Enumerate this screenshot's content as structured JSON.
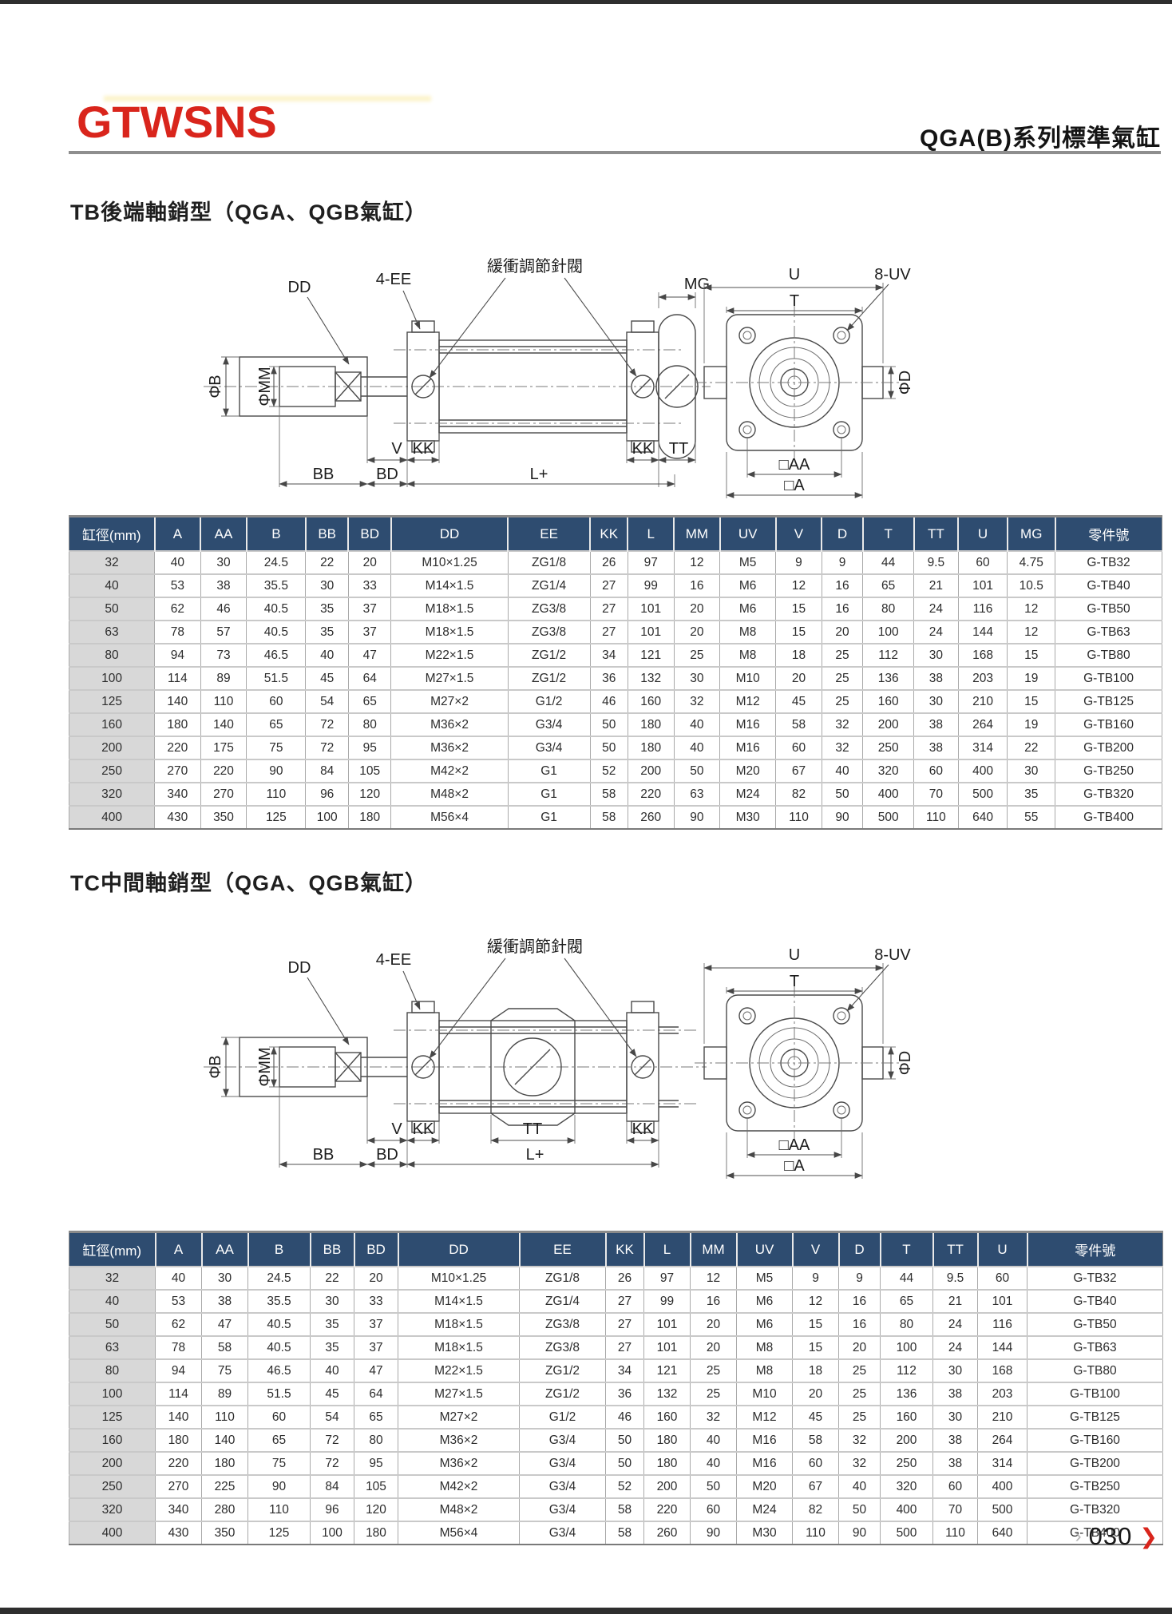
{
  "page": {
    "brand_logo": "GTWSNS",
    "doc_title": "QGA(B)系列標準氣缸",
    "pager": {
      "prev_icon": "›",
      "page_number": "030",
      "next_icon": "❯"
    }
  },
  "colors": {
    "accent_red": "#d9251c",
    "table_header_navy": "#2e4c70"
  },
  "sections": [
    {
      "title": "TB後端軸銷型（QGA、QGB氣缸）",
      "diagram": {
        "labels": {
          "dd": "DD",
          "ee": "4-EE",
          "valve": "緩衝調節針閥",
          "mg": "MG",
          "phi_b": "ΦB",
          "phi_mm": "ΦMM",
          "v": "V",
          "kk": "KK",
          "tt": "TT",
          "bb": "BB",
          "bd": "BD",
          "lplus": "L+",
          "u": "U",
          "t": "T",
          "uv": "8-UV",
          "phi_d": "ΦD",
          "aa": "□AA",
          "a": "□A"
        }
      },
      "table": {
        "headers": [
          "缸徑(mm)",
          "A",
          "AA",
          "B",
          "BB",
          "BD",
          "DD",
          "EE",
          "KK",
          "L",
          "MM",
          "UV",
          "V",
          "D",
          "T",
          "TT",
          "U",
          "MG",
          "零件號"
        ],
        "rows": [
          [
            "32",
            "40",
            "30",
            "24.5",
            "22",
            "20",
            "M10×1.25",
            "ZG1/8",
            "26",
            "97",
            "12",
            "M5",
            "9",
            "9",
            "44",
            "9.5",
            "60",
            "4.75",
            "G-TB32"
          ],
          [
            "40",
            "53",
            "38",
            "35.5",
            "30",
            "33",
            "M14×1.5",
            "ZG1/4",
            "27",
            "99",
            "16",
            "M6",
            "12",
            "16",
            "65",
            "21",
            "101",
            "10.5",
            "G-TB40"
          ],
          [
            "50",
            "62",
            "46",
            "40.5",
            "35",
            "37",
            "M18×1.5",
            "ZG3/8",
            "27",
            "101",
            "20",
            "M6",
            "15",
            "16",
            "80",
            "24",
            "116",
            "12",
            "G-TB50"
          ],
          [
            "63",
            "78",
            "57",
            "40.5",
            "35",
            "37",
            "M18×1.5",
            "ZG3/8",
            "27",
            "101",
            "20",
            "M8",
            "15",
            "20",
            "100",
            "24",
            "144",
            "12",
            "G-TB63"
          ],
          [
            "80",
            "94",
            "73",
            "46.5",
            "40",
            "47",
            "M22×1.5",
            "ZG1/2",
            "34",
            "121",
            "25",
            "M8",
            "18",
            "25",
            "112",
            "30",
            "168",
            "15",
            "G-TB80"
          ],
          [
            "100",
            "114",
            "89",
            "51.5",
            "45",
            "64",
            "M27×1.5",
            "ZG1/2",
            "36",
            "132",
            "30",
            "M10",
            "20",
            "25",
            "136",
            "38",
            "203",
            "19",
            "G-TB100"
          ],
          [
            "125",
            "140",
            "110",
            "60",
            "54",
            "65",
            "M27×2",
            "G1/2",
            "46",
            "160",
            "32",
            "M12",
            "45",
            "25",
            "160",
            "30",
            "210",
            "15",
            "G-TB125"
          ],
          [
            "160",
            "180",
            "140",
            "65",
            "72",
            "80",
            "M36×2",
            "G3/4",
            "50",
            "180",
            "40",
            "M16",
            "58",
            "32",
            "200",
            "38",
            "264",
            "19",
            "G-TB160"
          ],
          [
            "200",
            "220",
            "175",
            "75",
            "72",
            "95",
            "M36×2",
            "G3/4",
            "50",
            "180",
            "40",
            "M16",
            "60",
            "32",
            "250",
            "38",
            "314",
            "22",
            "G-TB200"
          ],
          [
            "250",
            "270",
            "220",
            "90",
            "84",
            "105",
            "M42×2",
            "G1",
            "52",
            "200",
            "50",
            "M20",
            "67",
            "40",
            "320",
            "60",
            "400",
            "30",
            "G-TB250"
          ],
          [
            "320",
            "340",
            "270",
            "110",
            "96",
            "120",
            "M48×2",
            "G1",
            "58",
            "220",
            "63",
            "M24",
            "82",
            "50",
            "400",
            "70",
            "500",
            "35",
            "G-TB320"
          ],
          [
            "400",
            "430",
            "350",
            "125",
            "100",
            "180",
            "M56×4",
            "G1",
            "58",
            "260",
            "90",
            "M30",
            "110",
            "90",
            "500",
            "110",
            "640",
            "55",
            "G-TB400"
          ]
        ]
      }
    },
    {
      "title": "TC中間軸銷型（QGA、QGB氣缸）",
      "diagram": {
        "labels": {
          "dd": "DD",
          "ee": "4-EE",
          "valve": "緩衝調節針閥",
          "phi_b": "ΦB",
          "phi_mm": "ΦMM",
          "v": "V",
          "kk": "KK",
          "tt": "TT",
          "bb": "BB",
          "bd": "BD",
          "lplus": "L+",
          "u": "U",
          "t": "T",
          "uv": "8-UV",
          "phi_d": "ΦD",
          "aa": "□AA",
          "a": "□A"
        }
      },
      "table": {
        "headers": [
          "缸徑(mm)",
          "A",
          "AA",
          "B",
          "BB",
          "BD",
          "DD",
          "EE",
          "KK",
          "L",
          "MM",
          "UV",
          "V",
          "D",
          "T",
          "TT",
          "U",
          "零件號"
        ],
        "rows": [
          [
            "32",
            "40",
            "30",
            "24.5",
            "22",
            "20",
            "M10×1.25",
            "ZG1/8",
            "26",
            "97",
            "12",
            "M5",
            "9",
            "9",
            "44",
            "9.5",
            "60",
            "G-TB32"
          ],
          [
            "40",
            "53",
            "38",
            "35.5",
            "30",
            "33",
            "M14×1.5",
            "ZG1/4",
            "27",
            "99",
            "16",
            "M6",
            "12",
            "16",
            "65",
            "21",
            "101",
            "G-TB40"
          ],
          [
            "50",
            "62",
            "47",
            "40.5",
            "35",
            "37",
            "M18×1.5",
            "ZG3/8",
            "27",
            "101",
            "20",
            "M6",
            "15",
            "16",
            "80",
            "24",
            "116",
            "G-TB50"
          ],
          [
            "63",
            "78",
            "58",
            "40.5",
            "35",
            "37",
            "M18×1.5",
            "ZG3/8",
            "27",
            "101",
            "20",
            "M8",
            "15",
            "20",
            "100",
            "24",
            "144",
            "G-TB63"
          ],
          [
            "80",
            "94",
            "75",
            "46.5",
            "40",
            "47",
            "M22×1.5",
            "ZG1/2",
            "34",
            "121",
            "25",
            "M8",
            "18",
            "25",
            "112",
            "30",
            "168",
            "G-TB80"
          ],
          [
            "100",
            "114",
            "89",
            "51.5",
            "45",
            "64",
            "M27×1.5",
            "ZG1/2",
            "36",
            "132",
            "25",
            "M10",
            "20",
            "25",
            "136",
            "38",
            "203",
            "G-TB100"
          ],
          [
            "125",
            "140",
            "110",
            "60",
            "54",
            "65",
            "M27×2",
            "G1/2",
            "46",
            "160",
            "32",
            "M12",
            "45",
            "25",
            "160",
            "30",
            "210",
            "G-TB125"
          ],
          [
            "160",
            "180",
            "140",
            "65",
            "72",
            "80",
            "M36×2",
            "G3/4",
            "50",
            "180",
            "40",
            "M16",
            "58",
            "32",
            "200",
            "38",
            "264",
            "G-TB160"
          ],
          [
            "200",
            "220",
            "180",
            "75",
            "72",
            "95",
            "M36×2",
            "G3/4",
            "50",
            "180",
            "40",
            "M16",
            "60",
            "32",
            "250",
            "38",
            "314",
            "G-TB200"
          ],
          [
            "250",
            "270",
            "225",
            "90",
            "84",
            "105",
            "M42×2",
            "G3/4",
            "52",
            "200",
            "50",
            "M20",
            "67",
            "40",
            "320",
            "60",
            "400",
            "G-TB250"
          ],
          [
            "320",
            "340",
            "280",
            "110",
            "96",
            "120",
            "M48×2",
            "G3/4",
            "58",
            "220",
            "60",
            "M24",
            "82",
            "50",
            "400",
            "70",
            "500",
            "G-TB320"
          ],
          [
            "400",
            "430",
            "350",
            "125",
            "100",
            "180",
            "M56×4",
            "G3/4",
            "58",
            "260",
            "90",
            "M30",
            "110",
            "90",
            "500",
            "110",
            "640",
            "G-TB400"
          ]
        ]
      }
    }
  ]
}
